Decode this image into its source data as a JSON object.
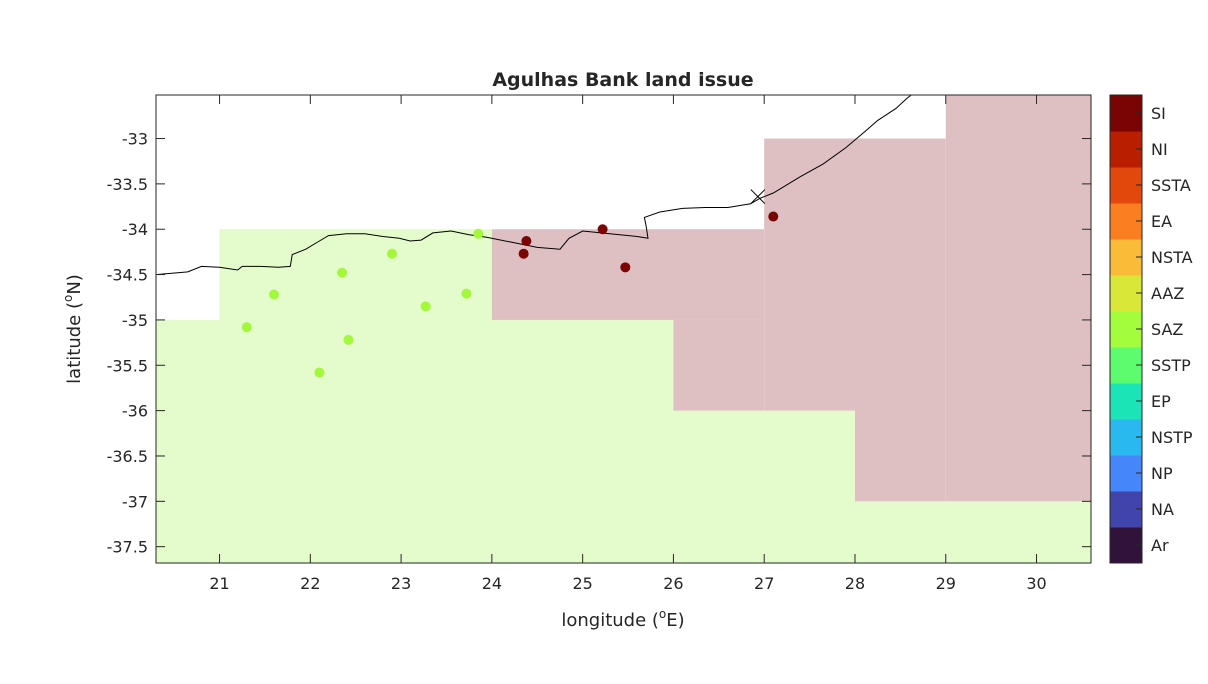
{
  "chart_data": {
    "type": "scatter",
    "title": "Agulhas Bank land issue",
    "xlabel": "longitude (°E)",
    "ylabel": "latitude (°N)",
    "xlim": [
      20.3,
      30.6
    ],
    "ylim": [
      -37.68,
      -32.52
    ],
    "xticks": [
      21,
      22,
      23,
      24,
      25,
      26,
      27,
      28,
      29,
      30
    ],
    "yticks": [
      -33,
      -33.5,
      -34,
      -34.5,
      -35,
      -35.5,
      -36,
      -36.5,
      -37,
      -37.5
    ],
    "xtick_labels": [
      "21",
      "22",
      "23",
      "24",
      "25",
      "26",
      "27",
      "28",
      "29",
      "30"
    ],
    "ytick_labels": [
      "-33",
      "-33.5",
      "-34",
      "-34.5",
      "-35",
      "-35.5",
      "-36",
      "-36.5",
      "-37",
      "-37.5"
    ],
    "grid": false,
    "region_colors": {
      "SAZ": "#e4fccb",
      "SI": "#dec0c2"
    },
    "regions": [
      {
        "province": "SAZ",
        "cells": [
          [
            20.3,
            21,
            -35,
            -37.68
          ],
          [
            21,
            24,
            -34,
            -37.68
          ],
          [
            24,
            26,
            -35,
            -37.68
          ],
          [
            26,
            28,
            -36,
            -37.68
          ],
          [
            28,
            30.6,
            -37,
            -37.68
          ]
        ]
      },
      {
        "province": "SI",
        "cells": [
          [
            24,
            27,
            -34,
            -35
          ],
          [
            26,
            27,
            -35,
            -36
          ],
          [
            27,
            28,
            -33,
            -36
          ],
          [
            28,
            29,
            -33,
            -37
          ],
          [
            29,
            30.6,
            -32.52,
            -37
          ]
        ]
      }
    ],
    "coastline": [
      [
        20.3,
        -34.5
      ],
      [
        20.65,
        -34.47
      ],
      [
        20.8,
        -34.41
      ],
      [
        21.0,
        -34.42
      ],
      [
        21.2,
        -34.45
      ],
      [
        21.25,
        -34.41
      ],
      [
        21.45,
        -34.41
      ],
      [
        21.65,
        -34.42
      ],
      [
        21.78,
        -34.41
      ],
      [
        21.8,
        -34.28
      ],
      [
        21.95,
        -34.22
      ],
      [
        22.1,
        -34.13
      ],
      [
        22.2,
        -34.07
      ],
      [
        22.4,
        -34.05
      ],
      [
        22.6,
        -34.05
      ],
      [
        22.8,
        -34.08
      ],
      [
        22.98,
        -34.1
      ],
      [
        23.1,
        -34.13
      ],
      [
        23.22,
        -34.12
      ],
      [
        23.35,
        -34.04
      ],
      [
        23.55,
        -34.02
      ],
      [
        23.75,
        -34.06
      ],
      [
        23.95,
        -34.09
      ],
      [
        24.2,
        -34.14
      ],
      [
        24.5,
        -34.2
      ],
      [
        24.75,
        -34.22
      ],
      [
        24.85,
        -34.1
      ],
      [
        25.0,
        -34.02
      ],
      [
        25.3,
        -34.05
      ],
      [
        25.6,
        -34.08
      ],
      [
        25.72,
        -34.1
      ],
      [
        25.7,
        -33.97
      ],
      [
        25.68,
        -33.87
      ],
      [
        25.85,
        -33.81
      ],
      [
        26.1,
        -33.77
      ],
      [
        26.35,
        -33.76
      ],
      [
        26.6,
        -33.76
      ],
      [
        26.85,
        -33.72
      ],
      [
        26.95,
        -33.66
      ],
      [
        27.1,
        -33.6
      ],
      [
        27.4,
        -33.42
      ],
      [
        27.65,
        -33.28
      ],
      [
        27.9,
        -33.1
      ],
      [
        28.1,
        -32.93
      ],
      [
        28.25,
        -32.8
      ],
      [
        28.45,
        -32.67
      ],
      [
        28.58,
        -32.55
      ],
      [
        28.62,
        -32.52
      ]
    ],
    "markers": [
      {
        "province": "SAZ",
        "color": "#a3f83c",
        "points": [
          [
            21.3,
            -35.08
          ],
          [
            21.6,
            -34.72
          ],
          [
            22.1,
            -35.58
          ],
          [
            22.35,
            -34.48
          ],
          [
            22.42,
            -35.22
          ],
          [
            22.9,
            -34.27
          ],
          [
            23.27,
            -34.85
          ],
          [
            23.72,
            -34.71
          ],
          [
            23.85,
            -34.05
          ]
        ]
      },
      {
        "province": "SI",
        "color": "#7a0403",
        "points": [
          [
            24.35,
            -34.27
          ],
          [
            24.38,
            -34.13
          ],
          [
            25.22,
            -34.0
          ],
          [
            25.47,
            -34.42
          ],
          [
            27.1,
            -33.86
          ]
        ]
      }
    ],
    "cross_marker": [
      26.93,
      -33.64
    ],
    "colorbar": {
      "labels": [
        "Ar",
        "NA",
        "NP",
        "NSTP",
        "EP",
        "SSTP",
        "SAZ",
        "AAZ",
        "NSTA",
        "EA",
        "SSTA",
        "NI",
        "SI"
      ],
      "colors": [
        "#30123b",
        "#4145ab",
        "#4686fb",
        "#2ab9ee",
        "#1be4b6",
        "#5dfc6f",
        "#a3fd3d",
        "#d9e838",
        "#fabb39",
        "#fb7e21",
        "#e2470c",
        "#b91e01",
        "#7a0403"
      ]
    }
  }
}
